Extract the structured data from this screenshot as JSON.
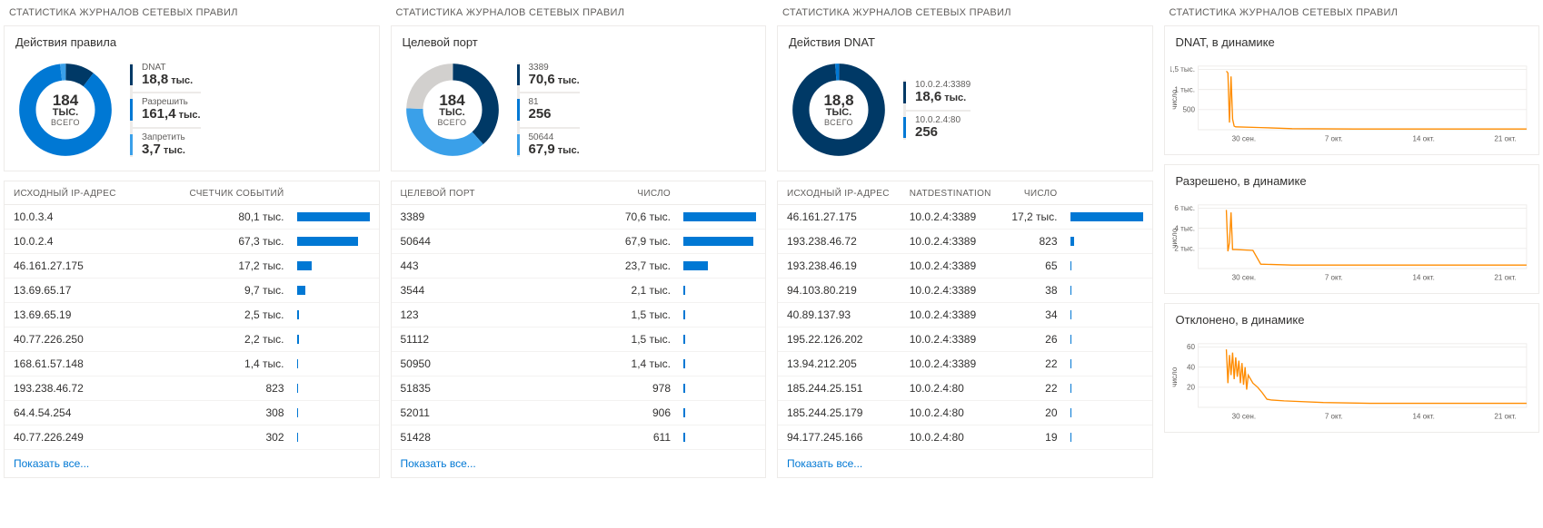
{
  "colors": {
    "accent": "#0078d4",
    "accent_dark": "#003966",
    "accent_mid": "#0f6cbd",
    "accent_light": "#3aa0e9",
    "gray_segment": "#d2d0ce",
    "orange": "#ff8c00",
    "grid": "#edebe9",
    "text": "#323130",
    "text_muted": "#605e5c",
    "link": "#0078d4",
    "bg": "#ffffff"
  },
  "common": {
    "panel_title": "СТАТИСТИКА ЖУРНАЛОВ СЕТЕВЫХ ПРАВИЛ",
    "show_all": "Показать все...",
    "total_label": "ВСЕГО",
    "unit_k": "тыс.",
    "unit_K": "ТЫС.",
    "y_label": "число"
  },
  "panel1": {
    "card_title": "Действия правила",
    "donut": {
      "center_value": "184",
      "center_unit": "ТЫС.",
      "segments": [
        {
          "color": "#003966",
          "percent": 10.2
        },
        {
          "color": "#0078d4",
          "percent": 87.8
        },
        {
          "color": "#3aa0e9",
          "percent": 2.0
        }
      ]
    },
    "legend": [
      {
        "label": "DNAT",
        "value": "18,8",
        "unit": "тыс.",
        "color": "#003966"
      },
      {
        "label": "Разрешить",
        "value": "161,4",
        "unit": "тыс.",
        "color": "#0078d4"
      },
      {
        "label": "Запретить",
        "value": "3,7",
        "unit": "тыс.",
        "color": "#3aa0e9"
      }
    ],
    "table": {
      "cols": [
        "ИСХОДНЫЙ IP-АДРЕС",
        "СЧЕТЧИК СОБЫТИЙ"
      ],
      "max": 80100,
      "rows": [
        {
          "a": "10.0.3.4",
          "v": "80,1 тыс.",
          "n": 80100
        },
        {
          "a": "10.0.2.4",
          "v": "67,3 тыс.",
          "n": 67300
        },
        {
          "a": "46.161.27.175",
          "v": "17,2 тыс.",
          "n": 17200
        },
        {
          "a": "13.69.65.17",
          "v": "9,7 тыс.",
          "n": 9700
        },
        {
          "a": "13.69.65.19",
          "v": "2,5 тыс.",
          "n": 2500
        },
        {
          "a": "40.77.226.250",
          "v": "2,2 тыс.",
          "n": 2200
        },
        {
          "a": "168.61.57.148",
          "v": "1,4 тыс.",
          "n": 1400
        },
        {
          "a": "193.238.46.72",
          "v": "823",
          "n": 823
        },
        {
          "a": "64.4.54.254",
          "v": "308",
          "n": 308
        },
        {
          "a": "40.77.226.249",
          "v": "302",
          "n": 302
        }
      ]
    }
  },
  "panel2": {
    "card_title": "Целевой порт",
    "donut": {
      "center_value": "184",
      "center_unit": "ТЫС.",
      "segments": [
        {
          "color": "#003966",
          "percent": 38.4
        },
        {
          "color": "#0078d4",
          "percent": 0.15
        },
        {
          "color": "#3aa0e9",
          "percent": 36.9
        },
        {
          "color": "#d2d0ce",
          "percent": 24.55
        }
      ]
    },
    "legend": [
      {
        "label": "3389",
        "value": "70,6",
        "unit": "тыс.",
        "color": "#003966"
      },
      {
        "label": "81",
        "value": "256",
        "unit": "",
        "color": "#0078d4"
      },
      {
        "label": "50644",
        "value": "67,9",
        "unit": "тыс.",
        "color": "#3aa0e9"
      }
    ],
    "table": {
      "cols": [
        "ЦЕЛЕВОЙ ПОРТ",
        "ЧИСЛО"
      ],
      "max": 70600,
      "rows": [
        {
          "a": "3389",
          "v": "70,6 тыс.",
          "n": 70600
        },
        {
          "a": "50644",
          "v": "67,9 тыс.",
          "n": 67900
        },
        {
          "a": "443",
          "v": "23,7 тыс.",
          "n": 23700
        },
        {
          "a": "3544",
          "v": "2,1 тыс.",
          "n": 2100
        },
        {
          "a": "123",
          "v": "1,5 тыс.",
          "n": 1500
        },
        {
          "a": "51112",
          "v": "1,5 тыс.",
          "n": 1500
        },
        {
          "a": "50950",
          "v": "1,4 тыс.",
          "n": 1400
        },
        {
          "a": "51835",
          "v": "978",
          "n": 978
        },
        {
          "a": "52011",
          "v": "906",
          "n": 906
        },
        {
          "a": "51428",
          "v": "611",
          "n": 611
        }
      ]
    }
  },
  "panel3": {
    "card_title": "Действия DNAT",
    "donut": {
      "center_value": "18,8",
      "center_unit": "ТЫС.",
      "segments": [
        {
          "color": "#003966",
          "percent": 98.6
        },
        {
          "color": "#0078d4",
          "percent": 1.4
        }
      ]
    },
    "legend": [
      {
        "label": "10.0.2.4:3389",
        "value": "18,6",
        "unit": "тыс.",
        "color": "#003966"
      },
      {
        "label": "10.0.2.4:80",
        "value": "256",
        "unit": "",
        "color": "#0078d4"
      }
    ],
    "table": {
      "cols": [
        "ИСХОДНЫЙ IP-АДРЕС",
        "NATDESTINATION",
        "ЧИСЛО"
      ],
      "max": 17200,
      "rows": [
        {
          "a": "46.161.27.175",
          "b": "10.0.2.4:3389",
          "v": "17,2 тыс.",
          "n": 17200
        },
        {
          "a": "193.238.46.72",
          "b": "10.0.2.4:3389",
          "v": "823",
          "n": 823
        },
        {
          "a": "193.238.46.19",
          "b": "10.0.2.4:3389",
          "v": "65",
          "n": 65
        },
        {
          "a": "94.103.80.219",
          "b": "10.0.2.4:3389",
          "v": "38",
          "n": 38
        },
        {
          "a": "40.89.137.93",
          "b": "10.0.2.4:3389",
          "v": "34",
          "n": 34
        },
        {
          "a": "195.22.126.202",
          "b": "10.0.2.4:3389",
          "v": "26",
          "n": 26
        },
        {
          "a": "13.94.212.205",
          "b": "10.0.2.4:3389",
          "v": "22",
          "n": 22
        },
        {
          "a": "185.244.25.151",
          "b": "10.0.2.4:80",
          "v": "22",
          "n": 22
        },
        {
          "a": "185.244.25.179",
          "b": "10.0.2.4:80",
          "v": "20",
          "n": 20
        },
        {
          "a": "94.177.245.166",
          "b": "10.0.2.4:80",
          "v": "19",
          "n": 19
        }
      ]
    }
  },
  "panel4": {
    "x_ticks": [
      "30 сен.",
      "7 окт.",
      "14 окт.",
      "21 окт."
    ],
    "charts": [
      {
        "title": "DNAT, в динамике",
        "yticks": [
          "1,5 тыс.",
          "1 тыс.",
          "500"
        ],
        "ymax": 1700,
        "points": [
          [
            36,
            1650
          ],
          [
            38,
            1600
          ],
          [
            40,
            200
          ],
          [
            42,
            1500
          ],
          [
            44,
            300
          ],
          [
            46,
            100
          ],
          [
            48,
            80
          ],
          [
            80,
            60
          ],
          [
            120,
            30
          ],
          [
            200,
            20
          ],
          [
            280,
            20
          ],
          [
            360,
            20
          ],
          [
            420,
            20
          ]
        ]
      },
      {
        "title": "Разрешено, в динамике",
        "yticks": [
          "6 тыс.",
          "4 тыс.",
          "2 тыс."
        ],
        "ymax": 7000,
        "points": [
          [
            36,
            6800
          ],
          [
            38,
            2000
          ],
          [
            40,
            3000
          ],
          [
            42,
            6500
          ],
          [
            44,
            2200
          ],
          [
            46,
            2200
          ],
          [
            48,
            2200
          ],
          [
            70,
            2100
          ],
          [
            80,
            500
          ],
          [
            120,
            400
          ],
          [
            200,
            400
          ],
          [
            280,
            400
          ],
          [
            360,
            400
          ],
          [
            420,
            400
          ]
        ]
      },
      {
        "title": "Отклонено, в динамике",
        "yticks": [
          "60",
          "40",
          "20"
        ],
        "ymax": 75,
        "points": [
          [
            36,
            72
          ],
          [
            38,
            30
          ],
          [
            40,
            65
          ],
          [
            42,
            40
          ],
          [
            44,
            68
          ],
          [
            46,
            35
          ],
          [
            48,
            62
          ],
          [
            50,
            38
          ],
          [
            52,
            58
          ],
          [
            54,
            30
          ],
          [
            56,
            55
          ],
          [
            58,
            28
          ],
          [
            60,
            50
          ],
          [
            62,
            22
          ],
          [
            64,
            40
          ],
          [
            70,
            30
          ],
          [
            76,
            25
          ],
          [
            82,
            18
          ],
          [
            88,
            10
          ],
          [
            94,
            9
          ],
          [
            110,
            8
          ],
          [
            160,
            6
          ],
          [
            220,
            5
          ],
          [
            300,
            5
          ],
          [
            420,
            5
          ]
        ]
      }
    ]
  }
}
